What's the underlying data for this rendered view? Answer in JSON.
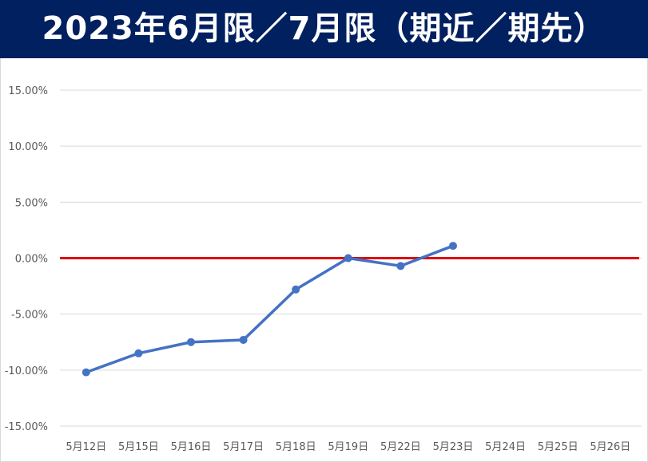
{
  "title": "2023年6月限／7月限（期近／期先）",
  "colors": {
    "banner": "#002060",
    "series": "#4472c4",
    "zero_line": "#e00000",
    "grid": "#d9d9d9",
    "tick_text": "#595959"
  },
  "chart_data": {
    "type": "line",
    "title": "2023年6月限／7月限（期近／期先）",
    "categories": [
      "5月12日",
      "5月15日",
      "5月16日",
      "5月17日",
      "5月18日",
      "5月19日",
      "5月22日",
      "5月23日",
      "5月24日",
      "5月25日",
      "5月26日"
    ],
    "series": [
      {
        "values": [
          -10.2,
          -8.5,
          -7.5,
          -7.3,
          -2.8,
          0.0,
          -0.7,
          1.1,
          null,
          null,
          null
        ]
      }
    ],
    "y_ticks": [
      "15.00%",
      "10.00%",
      "5.00%",
      "0.00%",
      "-5.00%",
      "-10.00%",
      "-15.00%"
    ],
    "ylim": [
      -15,
      15
    ],
    "y_unit": "%",
    "reference_line": 0,
    "grid": true,
    "legend": "none"
  }
}
